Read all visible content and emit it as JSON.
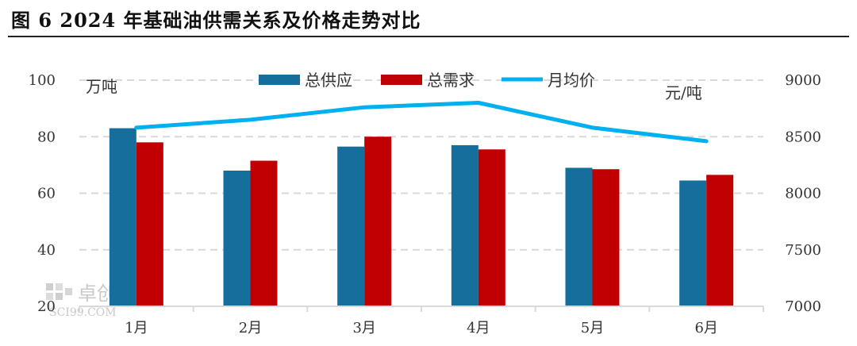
{
  "header": {
    "title": "图 6 2024 年基础油供需关系及价格走势对比"
  },
  "watermark": {
    "text": "卓创资讯",
    "sub": "SCI99.COM"
  },
  "colors": {
    "supply": "#156E9C",
    "demand": "#C00000",
    "price": "#00B0F0",
    "grid": "#D9D9D9"
  },
  "chart_data": {
    "type": "bar",
    "categories": [
      "1月",
      "2月",
      "3月",
      "4月",
      "5月",
      "6月"
    ],
    "series": [
      {
        "name": "总供应",
        "type": "bar",
        "axis": "left",
        "values": [
          83,
          68,
          76.5,
          77,
          69,
          64.5
        ]
      },
      {
        "name": "总需求",
        "type": "bar",
        "axis": "left",
        "values": [
          78,
          71.5,
          80,
          75.5,
          68.5,
          66.5
        ]
      },
      {
        "name": "月均价",
        "type": "line",
        "axis": "right",
        "values": [
          8580,
          8650,
          8760,
          8800,
          8580,
          8460
        ]
      }
    ],
    "y_left": {
      "unit": "万吨",
      "min": 20,
      "max": 100,
      "ticks": [
        "20",
        "40",
        "60",
        "80",
        "100"
      ]
    },
    "y_right": {
      "unit": "元/吨",
      "min": 7000,
      "max": 9000,
      "ticks": [
        "7000",
        "7500",
        "8000",
        "8500",
        "9000"
      ]
    },
    "legend": {
      "position": "top"
    },
    "grid": true
  }
}
